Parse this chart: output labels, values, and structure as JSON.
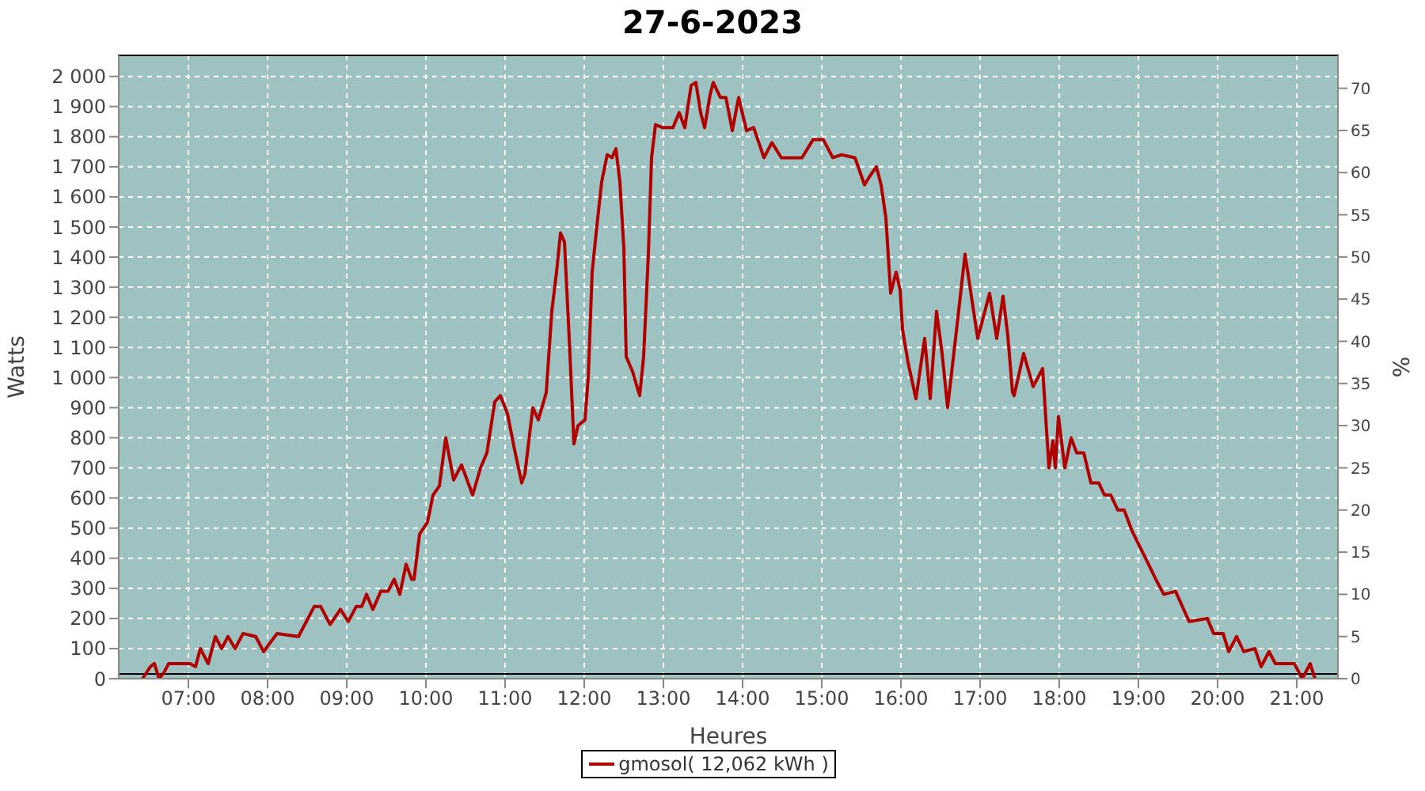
{
  "chart_data": {
    "type": "line",
    "title": "27-6-2023",
    "xlabel": "Heures",
    "ylabel": "Watts",
    "y2label": "%",
    "x": [
      6.42,
      6.52,
      6.57,
      6.63,
      6.69,
      6.75,
      7.02,
      7.09,
      7.15,
      7.25,
      7.34,
      7.42,
      7.5,
      7.59,
      7.69,
      7.85,
      7.95,
      8.12,
      8.39,
      8.59,
      8.67,
      8.79,
      8.92,
      9.02,
      9.12,
      9.19,
      9.25,
      9.33,
      9.43,
      9.52,
      9.6,
      9.67,
      9.75,
      9.82,
      9.85,
      9.92,
      10.02,
      10.09,
      10.17,
      10.25,
      10.35,
      10.45,
      10.59,
      10.69,
      10.77,
      10.87,
      10.94,
      11.03,
      11.12,
      11.21,
      11.25,
      11.35,
      11.42,
      11.52,
      11.59,
      11.65,
      11.7,
      11.75,
      11.81,
      11.87,
      11.92,
      12.01,
      12.05,
      12.1,
      12.15,
      12.22,
      12.29,
      12.35,
      12.4,
      12.45,
      12.5,
      12.53,
      12.61,
      12.7,
      12.75,
      12.81,
      12.85,
      12.9,
      12.99,
      13.12,
      13.2,
      13.27,
      13.35,
      13.41,
      13.47,
      13.52,
      13.59,
      13.63,
      13.72,
      13.79,
      13.87,
      13.95,
      14.05,
      14.14,
      14.27,
      14.37,
      14.49,
      14.75,
      14.89,
      15.02,
      15.14,
      15.25,
      15.42,
      15.54,
      15.61,
      15.69,
      15.75,
      15.81,
      15.87,
      15.94,
      15.99,
      16.02,
      16.09,
      16.19,
      16.3,
      16.37,
      16.45,
      16.52,
      16.59,
      16.72,
      16.81,
      16.89,
      16.97,
      17.04,
      17.12,
      17.21,
      17.29,
      17.35,
      17.41,
      17.43,
      17.55,
      17.67,
      17.79,
      17.87,
      17.92,
      17.95,
      17.99,
      18.07,
      18.15,
      18.22,
      18.31,
      18.4,
      18.5,
      18.57,
      18.65,
      18.74,
      18.82,
      18.92,
      19.09,
      19.22,
      19.32,
      19.47,
      19.64,
      19.87,
      19.95,
      20.07,
      20.14,
      20.24,
      20.33,
      20.47,
      20.55,
      20.65,
      20.73,
      20.97,
      21.07,
      21.17,
      21.23
    ],
    "series": [
      {
        "name": "gmosol( 12,062 kWh )",
        "color": "#b00000",
        "values": [
          0,
          40,
          50,
          0,
          20,
          50,
          50,
          40,
          100,
          50,
          140,
          100,
          140,
          100,
          150,
          140,
          90,
          150,
          140,
          240,
          240,
          180,
          230,
          190,
          240,
          240,
          280,
          230,
          290,
          290,
          330,
          280,
          380,
          330,
          330,
          480,
          520,
          610,
          640,
          800,
          660,
          710,
          610,
          700,
          750,
          920,
          940,
          880,
          760,
          650,
          680,
          900,
          860,
          950,
          1220,
          1350,
          1480,
          1450,
          1130,
          780,
          840,
          860,
          1000,
          1350,
          1480,
          1650,
          1740,
          1730,
          1760,
          1650,
          1430,
          1070,
          1020,
          940,
          1070,
          1410,
          1730,
          1840,
          1830,
          1830,
          1880,
          1830,
          1970,
          1980,
          1880,
          1830,
          1940,
          1980,
          1930,
          1930,
          1820,
          1930,
          1820,
          1830,
          1730,
          1780,
          1730,
          1730,
          1790,
          1790,
          1730,
          1740,
          1730,
          1640,
          1670,
          1700,
          1640,
          1530,
          1280,
          1350,
          1290,
          1160,
          1050,
          930,
          1130,
          930,
          1220,
          1080,
          900,
          1200,
          1410,
          1270,
          1130,
          1200,
          1280,
          1130,
          1270,
          1140,
          950,
          940,
          1080,
          970,
          1030,
          700,
          790,
          700,
          870,
          700,
          800,
          750,
          750,
          650,
          650,
          610,
          610,
          560,
          560,
          490,
          400,
          330,
          280,
          290,
          190,
          200,
          150,
          150,
          90,
          140,
          90,
          100,
          40,
          90,
          50,
          50,
          0,
          50,
          0
        ]
      }
    ],
    "xlim": [
      6.12,
      21.52
    ],
    "xticks": [
      {
        "value": 7,
        "label": "07:00"
      },
      {
        "value": 8,
        "label": "08:00"
      },
      {
        "value": 9,
        "label": "09:00"
      },
      {
        "value": 10,
        "label": "10:00"
      },
      {
        "value": 11,
        "label": "11:00"
      },
      {
        "value": 12,
        "label": "12:00"
      },
      {
        "value": 13,
        "label": "13:00"
      },
      {
        "value": 14,
        "label": "14:00"
      },
      {
        "value": 15,
        "label": "15:00"
      },
      {
        "value": 16,
        "label": "16:00"
      },
      {
        "value": 17,
        "label": "17:00"
      },
      {
        "value": 18,
        "label": "18:00"
      },
      {
        "value": 19,
        "label": "19:00"
      },
      {
        "value": 20,
        "label": "20:00"
      },
      {
        "value": 21,
        "label": "21:00"
      }
    ],
    "ylim": [
      0,
      2070
    ],
    "yticks": [
      0,
      100,
      200,
      300,
      400,
      500,
      600,
      700,
      800,
      900,
      {
        "value": 1000,
        "label": "1 000"
      },
      {
        "value": 1100,
        "label": "1 100"
      },
      {
        "value": 1200,
        "label": "1 200"
      },
      {
        "value": 1300,
        "label": "1 300"
      },
      {
        "value": 1400,
        "label": "1 400"
      },
      {
        "value": 1500,
        "label": "1 500"
      },
      {
        "value": 1600,
        "label": "1 600"
      },
      {
        "value": 1700,
        "label": "1 700"
      },
      {
        "value": 1800,
        "label": "1 800"
      },
      {
        "value": 1900,
        "label": "1 900"
      },
      {
        "value": 2000,
        "label": "2 000"
      }
    ],
    "y2lim": [
      0,
      73.9
    ],
    "y2ticks": [
      0,
      5,
      10,
      15,
      20,
      25,
      30,
      35,
      40,
      45,
      50,
      55,
      60,
      65,
      70
    ],
    "grid": true,
    "legend": "bottom",
    "marker": "none",
    "line_style": "solid"
  }
}
